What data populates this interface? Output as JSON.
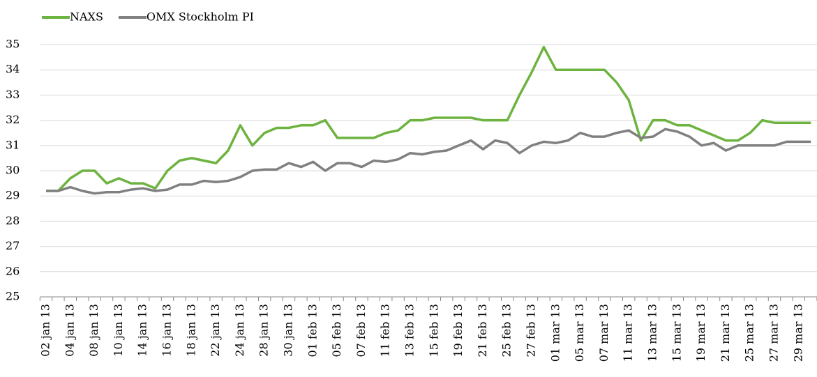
{
  "chart_data": {
    "type": "line",
    "categories": [
      "02 jan 13",
      null,
      "04 jan 13",
      null,
      "08 jan 13",
      null,
      "10 jan 13",
      null,
      "14 jan 13",
      null,
      "16 jan 13",
      null,
      "18 jan 13",
      null,
      "22 jan 13",
      null,
      "24 jan 13",
      null,
      "28 jan 13",
      null,
      "30 jan 13",
      null,
      "01 feb 13",
      null,
      "05 feb 13",
      null,
      "07 feb 13",
      null,
      "11 feb 13",
      null,
      "13 feb 13",
      null,
      "15 feb 13",
      null,
      "19 feb 13",
      null,
      "21 feb 13",
      null,
      "25 feb 13",
      null,
      "27 feb 13",
      null,
      "01 mar 13",
      null,
      "05 mar 13",
      null,
      "07 mar 13",
      null,
      "11 mar 13",
      null,
      "13 mar 13",
      null,
      "15 mar 13",
      null,
      "19 mar 13",
      null,
      "21 mar 13",
      null,
      "25 mar 13",
      null,
      "27 mar 13",
      null,
      "29 mar 13",
      null
    ],
    "series": [
      {
        "name": "NAXS",
        "color": "#6db33f",
        "values": [
          29.2,
          29.2,
          29.7,
          30.0,
          30.0,
          29.5,
          29.7,
          29.5,
          29.5,
          29.3,
          30.0,
          30.4,
          30.5,
          30.4,
          30.3,
          30.8,
          31.8,
          31.0,
          31.5,
          31.7,
          31.7,
          31.8,
          31.8,
          32.0,
          31.3,
          31.3,
          31.3,
          31.3,
          31.5,
          31.6,
          32.0,
          32.0,
          32.1,
          32.1,
          32.1,
          32.1,
          32.0,
          32.0,
          32.0,
          33.0,
          33.9,
          34.9,
          34.0,
          34.0,
          34.0,
          34.0,
          34.0,
          33.5,
          32.8,
          31.2,
          32.0,
          32.0,
          31.8,
          31.8,
          31.6,
          31.4,
          31.2,
          31.2,
          31.5,
          32.0,
          31.9,
          31.9,
          31.9,
          31.9
        ]
      },
      {
        "name": "OMX Stockholm PI",
        "color": "#808080",
        "values": [
          29.2,
          29.2,
          29.35,
          29.2,
          29.1,
          29.15,
          29.15,
          29.25,
          29.3,
          29.2,
          29.25,
          29.45,
          29.45,
          29.6,
          29.55,
          29.6,
          29.75,
          30.0,
          30.05,
          30.05,
          30.3,
          30.15,
          30.35,
          30.0,
          30.3,
          30.3,
          30.15,
          30.4,
          30.35,
          30.45,
          30.7,
          30.65,
          30.75,
          30.8,
          31.0,
          31.2,
          30.85,
          31.2,
          31.1,
          30.7,
          31.0,
          31.15,
          31.1,
          31.2,
          31.5,
          31.35,
          31.35,
          31.5,
          31.6,
          31.3,
          31.35,
          31.65,
          31.55,
          31.35,
          31.0,
          31.1,
          30.8,
          31.0,
          31.0,
          31.0,
          31.0,
          31.15,
          31.15,
          31.15
        ]
      }
    ],
    "ylim": [
      25,
      35
    ],
    "yticks": [
      25,
      26,
      27,
      28,
      29,
      30,
      31,
      32,
      33,
      34,
      35
    ],
    "grid": true,
    "legend": "top"
  }
}
